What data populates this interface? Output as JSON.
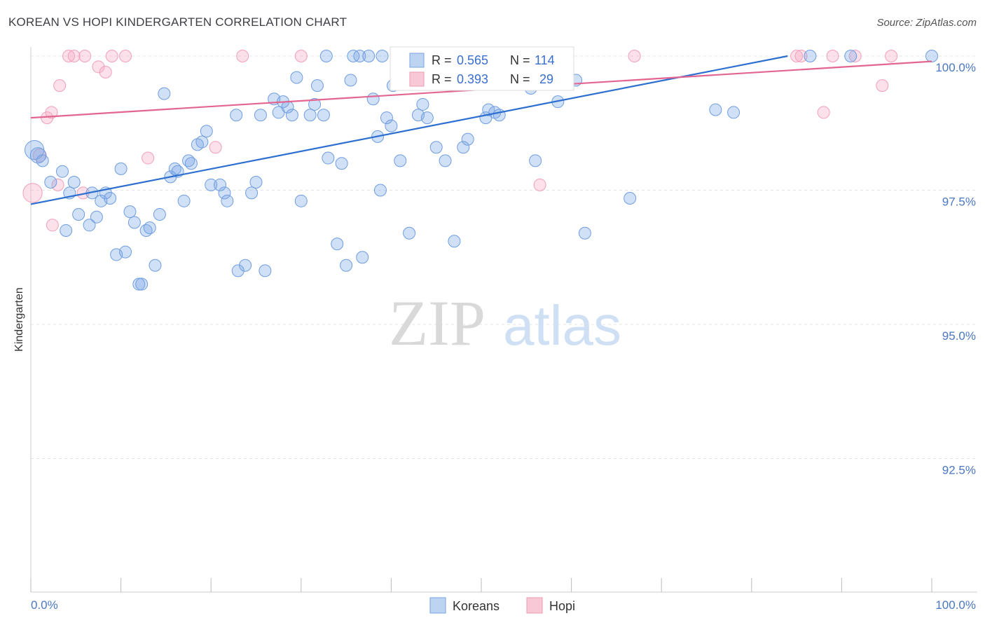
{
  "title": "KOREAN VS HOPI KINDERGARTEN CORRELATION CHART",
  "source": "Source: ZipAtlas.com",
  "colors": {
    "koreans": "#6f9de0",
    "hopi": "#f0a0b8",
    "koreans_line": "#2d6fd0",
    "hopi_line": "#e26690",
    "tick_text": "#4a78c2"
  },
  "legend": {
    "koreans": {
      "r_label": "R =",
      "r": "0.565",
      "n_label": "N =",
      "n": "114"
    },
    "hopi": {
      "r_label": "R =",
      "r": "0.393",
      "n_label": "N =",
      "n": "29"
    }
  },
  "bottom_legend": [
    "Koreans",
    "Hopi"
  ],
  "watermark": {
    "zip": "ZIP",
    "atlas": "atlas"
  },
  "chart_data": {
    "type": "scatter",
    "title": "KOREAN VS HOPI KINDERGARTEN CORRELATION CHART",
    "xlabel": "",
    "ylabel": "Kindergarten",
    "xlim": [
      0,
      100
    ],
    "ylim": [
      90.0,
      100.2
    ],
    "x_tick_labels": [
      "0.0%",
      "100.0%"
    ],
    "y_ticks": [
      100.0,
      97.5,
      95.0,
      92.5
    ],
    "y_tick_labels": [
      "100.0%",
      "97.5%",
      "95.0%",
      "92.5%"
    ],
    "grid": true,
    "legend_position": "top-center",
    "series": [
      {
        "name": "Koreans",
        "r": 0.565,
        "n": 114,
        "trend": [
          [
            0,
            97.24
          ],
          [
            84,
            100.0
          ]
        ],
        "points": [
          [
            0.4,
            98.25,
            1.6
          ],
          [
            0.8,
            98.15,
            1.3
          ],
          [
            1.3,
            98.05,
            1
          ],
          [
            3.5,
            97.85,
            1
          ],
          [
            2.2,
            97.65,
            1
          ],
          [
            4.8,
            97.65,
            1
          ],
          [
            4.3,
            97.45,
            1
          ],
          [
            6.8,
            97.45,
            1
          ],
          [
            8.3,
            97.45,
            1
          ],
          [
            7.8,
            97.3,
            1
          ],
          [
            8.8,
            97.35,
            1
          ],
          [
            3.9,
            96.75,
            1
          ],
          [
            6.5,
            96.85,
            1
          ],
          [
            5.3,
            97.05,
            1
          ],
          [
            7.3,
            97.0,
            1
          ],
          [
            9.5,
            96.3,
            1
          ],
          [
            10.5,
            96.35,
            1
          ],
          [
            11.0,
            97.1,
            1
          ],
          [
            11.5,
            96.9,
            1
          ],
          [
            12.8,
            96.75,
            1
          ],
          [
            13.2,
            96.8,
            1
          ],
          [
            14.3,
            97.05,
            1
          ],
          [
            13.8,
            96.1,
            1
          ],
          [
            12.0,
            95.75,
            1
          ],
          [
            12.3,
            95.75,
            1
          ],
          [
            10.0,
            97.9,
            1
          ],
          [
            14.8,
            99.3,
            1
          ],
          [
            15.5,
            97.75,
            1
          ],
          [
            16.0,
            97.9,
            1
          ],
          [
            16.3,
            97.85,
            1
          ],
          [
            17.0,
            97.3,
            1
          ],
          [
            17.5,
            98.05,
            1
          ],
          [
            17.8,
            98.0,
            1
          ],
          [
            18.5,
            98.35,
            1
          ],
          [
            19.0,
            98.4,
            1
          ],
          [
            19.5,
            98.6,
            1
          ],
          [
            20.0,
            97.6,
            1
          ],
          [
            21.0,
            97.6,
            1
          ],
          [
            21.5,
            97.45,
            1
          ],
          [
            21.8,
            97.3,
            1
          ],
          [
            23.0,
            96.0,
            1
          ],
          [
            22.8,
            98.9,
            1
          ],
          [
            23.8,
            96.1,
            1
          ],
          [
            24.5,
            97.45,
            1
          ],
          [
            25.0,
            97.65,
            1
          ],
          [
            25.5,
            98.9,
            1
          ],
          [
            26.0,
            96.0,
            1
          ],
          [
            27.0,
            99.2,
            1
          ],
          [
            27.5,
            98.95,
            1
          ],
          [
            28.0,
            99.15,
            1
          ],
          [
            28.5,
            99.05,
            1
          ],
          [
            29.0,
            98.9,
            1
          ],
          [
            29.5,
            99.6,
            1
          ],
          [
            30.0,
            97.3,
            1
          ],
          [
            31.0,
            98.9,
            1
          ],
          [
            31.5,
            99.1,
            1
          ],
          [
            31.8,
            99.45,
            1
          ],
          [
            32.5,
            98.9,
            1
          ],
          [
            32.8,
            100.0,
            1
          ],
          [
            33.0,
            98.1,
            1
          ],
          [
            34.0,
            96.5,
            1
          ],
          [
            34.5,
            98.0,
            1
          ],
          [
            35.0,
            96.1,
            1
          ],
          [
            35.5,
            99.55,
            1
          ],
          [
            35.8,
            100.0,
            1
          ],
          [
            36.5,
            100.0,
            1
          ],
          [
            36.8,
            96.25,
            1
          ],
          [
            37.5,
            100.0,
            1
          ],
          [
            38.0,
            99.2,
            1
          ],
          [
            38.5,
            98.5,
            1
          ],
          [
            38.8,
            97.5,
            1
          ],
          [
            39.0,
            100.0,
            1
          ],
          [
            39.5,
            98.85,
            1
          ],
          [
            40.0,
            98.7,
            1
          ],
          [
            40.2,
            99.45,
            1
          ],
          [
            41.0,
            98.05,
            1
          ],
          [
            41.5,
            100.0,
            1
          ],
          [
            42.0,
            96.7,
            1
          ],
          [
            42.3,
            100.0,
            1
          ],
          [
            43.0,
            98.9,
            1
          ],
          [
            43.5,
            99.1,
            1
          ],
          [
            44.0,
            98.85,
            1
          ],
          [
            45.0,
            98.3,
            1
          ],
          [
            46.0,
            98.05,
            1
          ],
          [
            46.5,
            100.0,
            1
          ],
          [
            47.0,
            96.55,
            1
          ],
          [
            47.3,
            100.0,
            1
          ],
          [
            48.0,
            98.3,
            1
          ],
          [
            48.5,
            98.45,
            1
          ],
          [
            49.0,
            100.0,
            1
          ],
          [
            50.5,
            98.85,
            1
          ],
          [
            50.8,
            99.0,
            1
          ],
          [
            51.5,
            98.95,
            1
          ],
          [
            52.0,
            98.9,
            1
          ],
          [
            54.5,
            100.0,
            1
          ],
          [
            55.0,
            100.0,
            1
          ],
          [
            55.5,
            99.4,
            1
          ],
          [
            56.0,
            98.05,
            1
          ],
          [
            57.0,
            99.55,
            1
          ],
          [
            58.0,
            100.0,
            1
          ],
          [
            58.5,
            99.15,
            1
          ],
          [
            60.5,
            99.55,
            1
          ],
          [
            61.5,
            96.7,
            1
          ],
          [
            66.5,
            97.35,
            1
          ],
          [
            76.0,
            99.0,
            1
          ],
          [
            78.0,
            98.95,
            1
          ],
          [
            86.5,
            100.0,
            1
          ],
          [
            91.0,
            100.0,
            1
          ],
          [
            100.0,
            100.0,
            1
          ]
        ]
      },
      {
        "name": "Hopi",
        "r": 0.393,
        "n": 29,
        "trend": [
          [
            0,
            98.85
          ],
          [
            100,
            99.9
          ]
        ],
        "points": [
          [
            0.2,
            97.45,
            1.6
          ],
          [
            1.0,
            98.15,
            1.1
          ],
          [
            1.8,
            98.85,
            1
          ],
          [
            2.3,
            98.95,
            1
          ],
          [
            2.4,
            96.85,
            1
          ],
          [
            3.0,
            97.6,
            1
          ],
          [
            3.2,
            99.45,
            1
          ],
          [
            4.2,
            100.0,
            1
          ],
          [
            4.8,
            100.0,
            1
          ],
          [
            5.8,
            97.45,
            1
          ],
          [
            6.0,
            100.0,
            1
          ],
          [
            7.5,
            99.8,
            1
          ],
          [
            8.3,
            99.7,
            1
          ],
          [
            9.0,
            100.0,
            1
          ],
          [
            10.5,
            100.0,
            1
          ],
          [
            13.0,
            98.1,
            1
          ],
          [
            20.5,
            98.3,
            1
          ],
          [
            23.5,
            100.0,
            1
          ],
          [
            30.0,
            100.0,
            1
          ],
          [
            42.5,
            100.0,
            1
          ],
          [
            56.5,
            97.6,
            1
          ],
          [
            67.0,
            100.0,
            1
          ],
          [
            85.0,
            100.0,
            1
          ],
          [
            85.5,
            100.0,
            1
          ],
          [
            88.0,
            98.95,
            1
          ],
          [
            89.0,
            100.0,
            1
          ],
          [
            91.5,
            100.0,
            1
          ],
          [
            94.5,
            99.45,
            1
          ],
          [
            95.5,
            100.0,
            1
          ]
        ]
      }
    ]
  }
}
